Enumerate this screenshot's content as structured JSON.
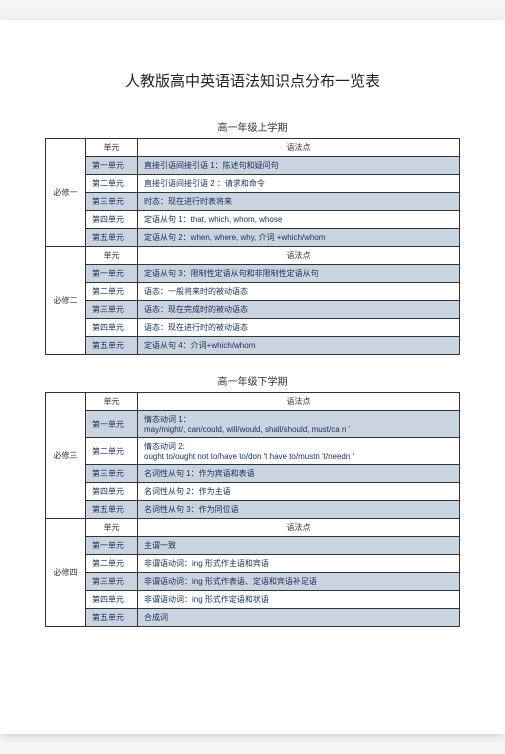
{
  "title": "人教版高中英语语法知识点分布一览表",
  "colors": {
    "shaded": "#cad3e0",
    "border": "#333333",
    "text_blue": "#1a2e55"
  },
  "sections": [
    {
      "subhead": "高一年级上学期",
      "books": [
        {
          "label": "必修一",
          "header": {
            "unit": "单元",
            "grammar": "语法点"
          },
          "rows": [
            {
              "unit": "第一单元",
              "content": "直接引语间接引语 1：陈述句和疑问句",
              "shaded": true
            },
            {
              "unit": "第二单元",
              "content": "直接引语间接引语 2 ：请求和命令",
              "shaded": false
            },
            {
              "unit": "第三单元",
              "content": "时态：现在进行时表将来",
              "shaded": true
            },
            {
              "unit": "第四单元",
              "content": "定语从句  1：that, which, whom, whose",
              "shaded": false
            },
            {
              "unit": "第五单元",
              "content": "定语从句  2：when, where, why, 介词 +which/whom",
              "shaded": true
            }
          ]
        },
        {
          "label": "必修二",
          "header": {
            "unit": "单元",
            "grammar": "语法点"
          },
          "rows": [
            {
              "unit": "第一单元",
              "content": "定语从句 3：限制性定语从句和非限制性定语从句",
              "shaded": true
            },
            {
              "unit": "第二单元",
              "content": "语态：一般将来时的被动语态",
              "shaded": false
            },
            {
              "unit": "第三单元",
              "content": "语态：现在完成时的被动语态",
              "shaded": true
            },
            {
              "unit": "第四单元",
              "content": "语态：现在进行时的被动语态",
              "shaded": false
            },
            {
              "unit": "第五单元",
              "content": "定语从句  4：介词+which/whom",
              "shaded": true
            }
          ]
        }
      ]
    },
    {
      "subhead": "高一年级下学期",
      "books": [
        {
          "label": "必修三",
          "header": {
            "unit": "单元",
            "grammar": "语法点"
          },
          "rows": [
            {
              "unit": "第一单元",
              "content": "情态动词 1：\nmay/might/, can/could, will/would, shall/should, must/ca n      '",
              "shaded": true
            },
            {
              "unit": "第二单元",
              "content": "情态动词 2:\nought to/ought not to/have to/don 't have to/mustn 't/needn '",
              "shaded": false
            },
            {
              "unit": "第三单元",
              "content": "名词性从句 1：作为宾语和表语",
              "shaded": true
            },
            {
              "unit": "第四单元",
              "content": "名词性从句 2：作为主语",
              "shaded": false
            },
            {
              "unit": "第五单元",
              "content": "名词性从句 3：作为同位语",
              "shaded": true
            }
          ]
        },
        {
          "label": "必修四",
          "header": {
            "unit": "单元",
            "grammar": "语法点"
          },
          "rows": [
            {
              "unit": "第一单元",
              "content": "主谓一致",
              "shaded": true
            },
            {
              "unit": "第二单元",
              "content": "非谓语动词：ing 形式作主语和宾语",
              "shaded": false
            },
            {
              "unit": "第三单元",
              "content": "非谓语动词：ing 形式作表语、定语和宾语补足语",
              "shaded": true
            },
            {
              "unit": "第四单元",
              "content": "非谓语动词：ing 形式作定语和状语",
              "shaded": false
            },
            {
              "unit": "第五单元",
              "content": "合成词",
              "shaded": true
            }
          ]
        }
      ]
    }
  ]
}
